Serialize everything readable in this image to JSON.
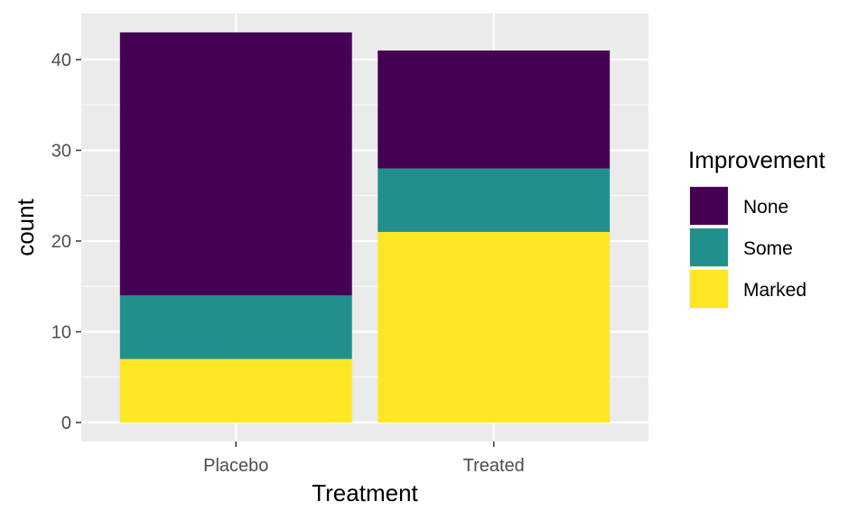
{
  "chart_data": {
    "type": "bar",
    "stacked": true,
    "categories": [
      "Placebo",
      "Treated"
    ],
    "series": [
      {
        "name": "Marked",
        "values": [
          7,
          21
        ],
        "color": "#FDE725"
      },
      {
        "name": "Some",
        "values": [
          7,
          7
        ],
        "color": "#21908C"
      },
      {
        "name": "None",
        "values": [
          29,
          13
        ],
        "color": "#440154"
      }
    ],
    "xlabel": "Treatment",
    "ylabel": "count",
    "ylim": [
      0,
      45
    ],
    "yticks": [
      0,
      10,
      20,
      30,
      40
    ],
    "ytick_labels": [
      "0",
      "10",
      "20",
      "30",
      "40"
    ],
    "grid": true,
    "panel_background": "#EBEBEB",
    "legend": {
      "title": "Improvement",
      "position": "right",
      "entries": [
        "None",
        "Some",
        "Marked"
      ],
      "colors": [
        "#440154",
        "#21908C",
        "#FDE725"
      ]
    }
  }
}
